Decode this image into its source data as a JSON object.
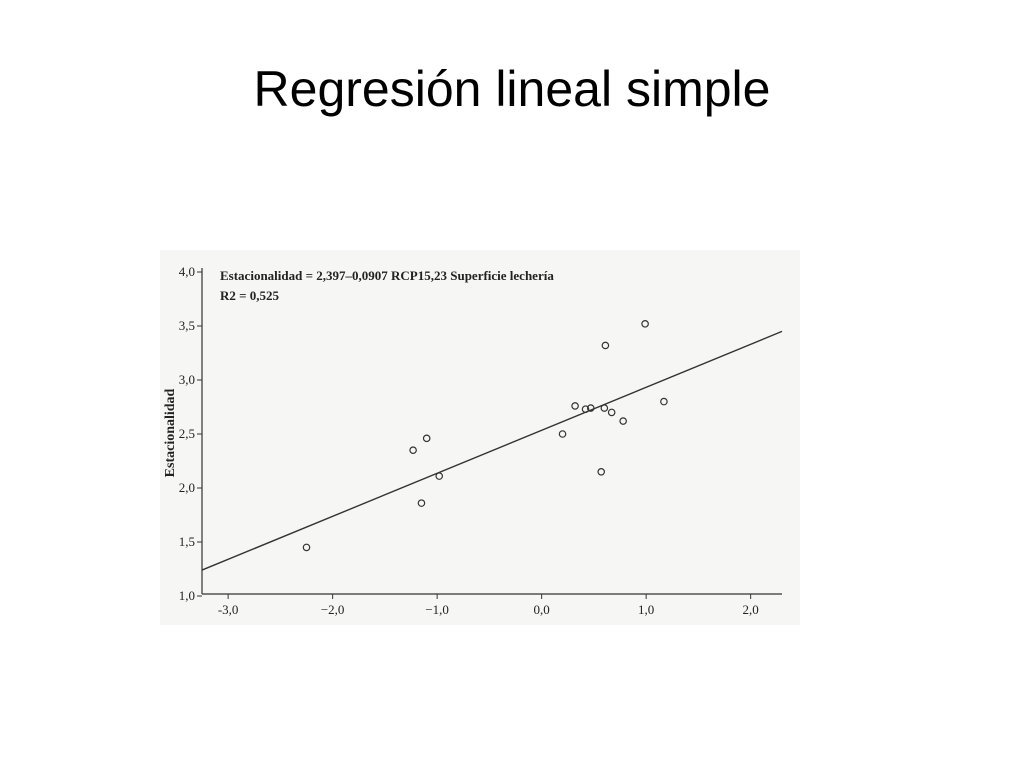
{
  "slide": {
    "title": "Regresión lineal simple"
  },
  "chart_data": {
    "type": "scatter",
    "ylabel": "Estacionalidad",
    "xlabel": "",
    "annotations": [
      "Estacionalidad = 2,397–0,0907 RCP15,23  Superficie lechería",
      "R2 = 0,525"
    ],
    "xlim": [
      -3.25,
      2.3
    ],
    "ylim": [
      1.0,
      4.0
    ],
    "x_ticks": [
      -3.0,
      -2.0,
      -1.0,
      0.0,
      1.0,
      2.0
    ],
    "x_tick_labels": [
      "-3,0",
      "−2,0",
      "−1,0",
      "0,0",
      "1,0",
      "2,0"
    ],
    "y_ticks": [
      1.0,
      1.5,
      2.0,
      2.5,
      3.0,
      3.5,
      4.0
    ],
    "y_tick_labels": [
      "1,0",
      "1,5",
      "2,0",
      "2,5",
      "3,0",
      "3,5",
      "4,0"
    ],
    "grid": false,
    "series": [
      {
        "marker": "open-circle",
        "x": [
          -2.25,
          -1.23,
          -1.15,
          -1.1,
          -0.98,
          0.2,
          0.32,
          0.42,
          0.47,
          0.57,
          0.6,
          0.61,
          0.67,
          0.78,
          0.99,
          1.17
        ],
        "y": [
          1.45,
          2.35,
          1.86,
          2.46,
          2.11,
          2.5,
          2.76,
          2.73,
          2.74,
          2.15,
          2.74,
          3.32,
          2.7,
          2.62,
          3.52,
          2.8
        ]
      }
    ],
    "fit_line": {
      "x": [
        -3.25,
        2.3
      ],
      "y": [
        1.24,
        3.45
      ]
    }
  }
}
